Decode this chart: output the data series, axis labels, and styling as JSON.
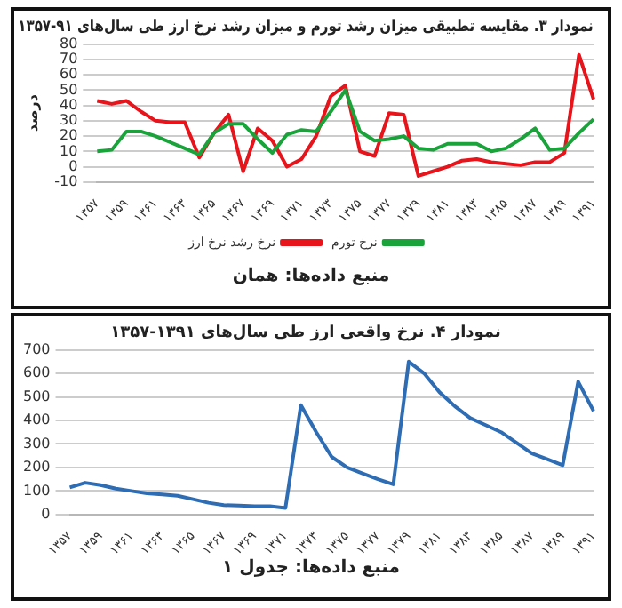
{
  "chart_data": [
    {
      "type": "line",
      "title": "نمودار ۳. مقایسه تطبیقی میزان رشد تورم و میزان رشد نرخ ارز طی سال‌های ۹۱-۱۳۵۷",
      "ylabel": "درصد",
      "annotations": [
        "منبع داده‌ها: همان"
      ],
      "categories": [
        "۱۳۵۷",
        null,
        "۱۳۵۹",
        null,
        "۱۳۶۱",
        null,
        "۱۳۶۳",
        null,
        "۱۳۶۵",
        null,
        "۱۳۶۷",
        null,
        "۱۳۶۹",
        null,
        "۱۳۷۱",
        null,
        "۱۳۷۳",
        null,
        "۱۳۷۵",
        null,
        "۱۳۷۷",
        null,
        "۱۳۷۹",
        null,
        "۱۳۸۱",
        null,
        "۱۳۸۳",
        null,
        "۱۳۸۵",
        null,
        "۱۳۸۷",
        null,
        "۱۳۸۹",
        null,
        "۱۳۹۱"
      ],
      "series": [
        {
          "name": "نرخ تورم",
          "color": "#1aa33a",
          "values": [
            10,
            11,
            23,
            23,
            20,
            16,
            12,
            8,
            22,
            28,
            28,
            18,
            9,
            21,
            24,
            23,
            36,
            50,
            23,
            17,
            18,
            20,
            12,
            11,
            15,
            15,
            15,
            10,
            12,
            18,
            25,
            11,
            12,
            22,
            31
          ]
        },
        {
          "name": "نرخ رشد نرخ ارز",
          "color": "#e8141c",
          "values": [
            43,
            41,
            43,
            36,
            30,
            29,
            29,
            6,
            22,
            34,
            -3,
            25,
            17,
            0,
            5,
            20,
            46,
            53,
            10,
            7,
            35,
            34,
            -6,
            -3,
            0,
            4,
            5,
            3,
            2,
            1,
            3,
            3,
            9,
            73,
            44
          ]
        }
      ],
      "ylim": [
        -10,
        80
      ],
      "yticks": [
        -10,
        0,
        10,
        20,
        30,
        40,
        50,
        60,
        70,
        80
      ],
      "grid": "y",
      "legend": "bottom"
    },
    {
      "type": "line",
      "title": "نمودار ۴. نرخ واقعی ارز طی سال‌های ۱۳۹۱-۱۳۵۷",
      "annotations": [
        "منبع داده‌ها: جدول ۱"
      ],
      "categories": [
        "۱۳۵۷",
        null,
        "۱۳۵۹",
        null,
        "۱۳۶۱",
        null,
        "۱۳۶۳",
        null,
        "۱۳۶۵",
        null,
        "۱۳۶۷",
        null,
        "۱۳۶۹",
        null,
        "۱۳۷۱",
        null,
        "۱۳۷۳",
        null,
        "۱۳۷۵",
        null,
        "۱۳۷۷",
        null,
        "۱۳۷۹",
        null,
        "۱۳۸۱",
        null,
        "۱۳۸۳",
        null,
        "۱۳۸۵",
        null,
        "۱۳۸۷",
        null,
        "۱۳۸۹",
        null,
        "۱۳۹۱"
      ],
      "series": [
        {
          "color": "#2e6db4",
          "values": [
            115,
            135,
            125,
            110,
            100,
            90,
            85,
            80,
            65,
            50,
            40,
            38,
            35,
            35,
            28,
            465,
            350,
            245,
            200,
            175,
            150,
            128,
            650,
            600,
            520,
            460,
            410,
            380,
            350,
            305,
            260,
            235,
            210,
            565,
            440
          ]
        }
      ],
      "ylim": [
        0,
        700
      ],
      "yticks": [
        0,
        100,
        200,
        300,
        400,
        500,
        600,
        700
      ],
      "grid": "y",
      "legend": false
    }
  ]
}
